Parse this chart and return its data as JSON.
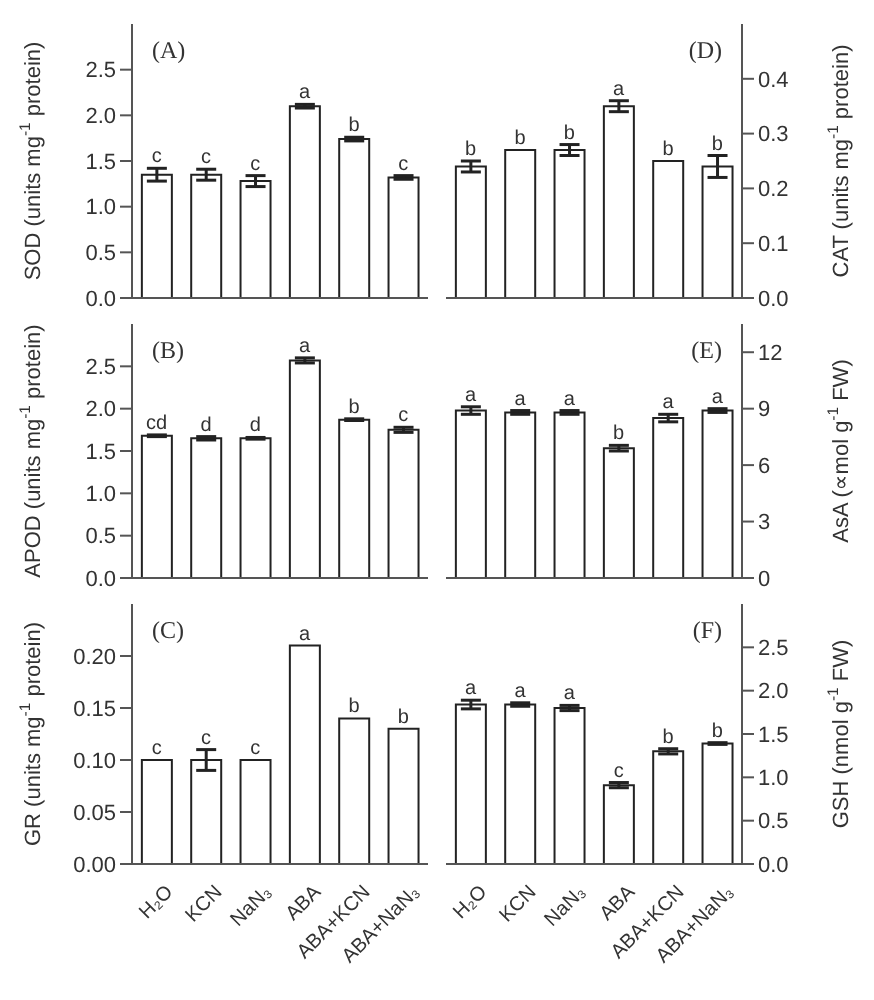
{
  "chart_data": [
    {
      "type": "bar",
      "categories": [
        "H₂O",
        "KCN",
        "NaN₃",
        "ABA",
        "ABA+KCN",
        "ABA+NaN₃"
      ],
      "series": [
        {
          "color": "#ffffff",
          "values": [
            1.35,
            1.35,
            1.28,
            2.1,
            1.74,
            1.32
          ],
          "errors": [
            0.07,
            0.06,
            0.06,
            0.02,
            0.02,
            0.02
          ]
        }
      ],
      "ylim": [
        0,
        3
      ],
      "yticks": [
        {
          "value": 0,
          "label": "0.0"
        },
        0.5,
        {
          "value": 1,
          "label": "1.0"
        },
        1.5,
        {
          "value": 2,
          "label": "2.0"
        },
        2.5
      ],
      "ylabel": "SOD  (units mg$^{-1}$ protein)",
      "tick_labels": "y",
      "annotations": [
        "(A)",
        {
          "text": "c",
          "x": "H₂O",
          "y": 1.42
        },
        {
          "text": "c",
          "x": "KCN",
          "y": 1.41
        },
        {
          "text": "c",
          "x": "NaN₃",
          "y": 1.34
        },
        {
          "text": "a",
          "x": "ABA",
          "y": 2.12
        },
        {
          "text": "b",
          "x": "ABA+KCN",
          "y": 1.76
        },
        {
          "text": "c",
          "x": "ABA+NaN₃",
          "y": 1.34
        }
      ]
    },
    {
      "type": "bar",
      "categories": [
        "H₂O",
        "KCN",
        "NaN₃",
        "ABA",
        "ABA+KCN",
        "ABA+NaN₃"
      ],
      "series": [
        {
          "color": "#ffffff",
          "values": [
            0.24,
            0.27,
            0.27,
            0.35,
            0.25,
            0.24
          ],
          "errors": [
            0.01,
            null,
            0.01,
            0.01,
            null,
            0.02
          ]
        }
      ],
      "ylim": [
        0,
        0.5
      ],
      "yticks": [
        {
          "value": 0,
          "label": "0.0"
        },
        0.1,
        0.2,
        0.3,
        0.4
      ],
      "ylabel": "CAT  (units mg$^{-1}$ protein)",
      "tick_labels": "y",
      "annotations": [
        "(D)",
        {
          "text": "b",
          "x": "H₂O",
          "y": 0.25
        },
        {
          "text": "b",
          "x": "KCN",
          "y": 0.27
        },
        {
          "text": "b",
          "x": "NaN₃",
          "y": 0.28
        },
        {
          "text": "a",
          "x": "ABA",
          "y": 0.36
        },
        {
          "text": "b",
          "x": "ABA+KCN",
          "y": 0.25
        },
        {
          "text": "b",
          "x": "ABA+NaN₃",
          "y": 0.26
        }
      ]
    },
    {
      "type": "bar",
      "categories": [
        "H₂O",
        "KCN",
        "NaN₃",
        "ABA",
        "ABA+KCN",
        "ABA+NaN₃"
      ],
      "series": [
        {
          "color": "#ffffff",
          "values": [
            1.68,
            1.65,
            1.65,
            2.57,
            1.87,
            1.75
          ],
          "errors": [
            0.01,
            0.02,
            0.01,
            0.03,
            0.01,
            0.03
          ]
        }
      ],
      "ylim": [
        0,
        3
      ],
      "yticks": [
        {
          "value": 0,
          "label": "0.0"
        },
        0.5,
        {
          "value": 1,
          "label": "1.0"
        },
        1.5,
        {
          "value": 2,
          "label": "2.0"
        },
        2.5
      ],
      "ylabel": "APOD  (units mg$^{-1}$ protein)",
      "tick_labels": "y",
      "annotations": [
        "(B)",
        {
          "text": "cd",
          "x": "H₂O",
          "y": 1.69
        },
        {
          "text": "d",
          "x": "KCN",
          "y": 1.67
        },
        {
          "text": "d",
          "x": "NaN₃",
          "y": 1.66
        },
        {
          "text": "a",
          "x": "ABA",
          "y": 2.6
        },
        {
          "text": "b",
          "x": "ABA+KCN",
          "y": 1.88
        },
        {
          "text": "c",
          "x": "ABA+NaN₃",
          "y": 1.78
        }
      ]
    },
    {
      "type": "bar",
      "categories": [
        "H₂O",
        "KCN",
        "NaN₃",
        "ABA",
        "ABA+KCN",
        "ABA+NaN₃"
      ],
      "series": [
        {
          "color": "#ffffff",
          "values": [
            8.9,
            8.8,
            8.8,
            6.9,
            8.5,
            8.9
          ],
          "errors": [
            0.2,
            0.1,
            0.1,
            0.15,
            0.2,
            0.1
          ]
        }
      ],
      "ylim": [
        0,
        13.5
      ],
      "yticks": [
        0,
        3,
        6,
        9,
        12
      ],
      "ylabel": "AsA  (∝mol g$^{-1}$ FW)",
      "tick_labels": "y",
      "annotations": [
        "(E)",
        {
          "text": "a",
          "x": "H₂O",
          "y": 9.1
        },
        {
          "text": "a",
          "x": "KCN",
          "y": 8.9
        },
        {
          "text": "a",
          "x": "NaN₃",
          "y": 8.9
        },
        {
          "text": "b",
          "x": "ABA",
          "y": 7.05
        },
        {
          "text": "a",
          "x": "ABA+KCN",
          "y": 8.7
        },
        {
          "text": "a",
          "x": "ABA+NaN₃",
          "y": 9
        }
      ]
    },
    {
      "type": "bar",
      "categories": [
        "H₂O",
        "KCN",
        "NaN₃",
        "ABA",
        "ABA+KCN",
        "ABA+NaN₃"
      ],
      "series": [
        {
          "color": "#ffffff",
          "values": [
            0.1,
            0.1,
            0.1,
            0.21,
            0.14,
            0.13
          ],
          "errors": [
            null,
            0.01,
            null,
            null,
            null,
            null
          ]
        }
      ],
      "ylim": [
        0,
        0.25
      ],
      "yticks": [
        {
          "value": 0,
          "label": "0.00"
        },
        {
          "value": 0.05,
          "label": "0.05"
        },
        {
          "value": 0.1,
          "label": "0.10"
        },
        {
          "value": 0.15,
          "label": "0.15"
        },
        {
          "value": 0.2,
          "label": "0.20"
        }
      ],
      "ylabel": "GR  (units mg$^{-1}$ protein)",
      "annotations": [
        "(C)",
        {
          "text": "c",
          "x": "H₂O",
          "y": 0.1
        },
        {
          "text": "c",
          "x": "KCN",
          "y": 0.11
        },
        {
          "text": "c",
          "x": "NaN₃",
          "y": 0.1
        },
        {
          "text": "a",
          "x": "ABA",
          "y": 0.21
        },
        {
          "text": "b",
          "x": "ABA+KCN",
          "y": 0.14
        },
        {
          "text": "b",
          "x": "ABA+NaN₃",
          "y": 0.13
        }
      ]
    },
    {
      "type": "bar",
      "categories": [
        "H₂O",
        "KCN",
        "NaN₃",
        "ABA",
        "ABA+KCN",
        "ABA+NaN₃"
      ],
      "series": [
        {
          "color": "#ffffff",
          "values": [
            1.84,
            1.84,
            1.8,
            0.91,
            1.3,
            1.39
          ],
          "errors": [
            0.05,
            0.02,
            0.03,
            0.03,
            0.03,
            0.01
          ]
        }
      ],
      "ylim": [
        0,
        3
      ],
      "yticks": [
        {
          "value": 0,
          "label": "0.0"
        },
        0.5,
        {
          "value": 1,
          "label": "1.0"
        },
        1.5,
        {
          "value": 2,
          "label": "2.0"
        },
        2.5
      ],
      "ylabel": "GSH  (nmol g$^{-1}$ FW)",
      "annotations": [
        "(F)",
        {
          "text": "a",
          "x": "H₂O",
          "y": 1.89
        },
        {
          "text": "a",
          "x": "KCN",
          "y": 1.86
        },
        {
          "text": "a",
          "x": "NaN₃",
          "y": 1.83
        },
        {
          "text": "c",
          "x": "ABA",
          "y": 0.94
        },
        {
          "text": "b",
          "x": "ABA+KCN",
          "y": 1.33
        },
        {
          "text": "b",
          "x": "ABA+NaN₃",
          "y": 1.4
        }
      ]
    }
  ]
}
